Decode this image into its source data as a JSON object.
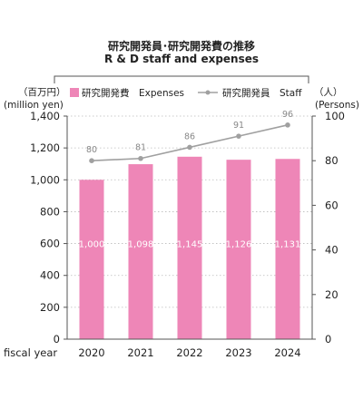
{
  "chart_data": {
    "type": "bar",
    "title": "研究開発員･研究開発費の推移",
    "subtitle": "R & D staff and expenses",
    "xlabel": "fiscal year",
    "categories": [
      "2020",
      "2021",
      "2022",
      "2023",
      "2024"
    ],
    "left_unit_line1": "（百万円）",
    "left_unit_line2": "(million yen)",
    "right_unit_line1": "（人）",
    "right_unit_line2": "(Persons)",
    "ylim_left": [
      0,
      1400
    ],
    "ylim_right": [
      0,
      100
    ],
    "yticks_left": [
      "0",
      "200",
      "400",
      "600",
      "800",
      "1,000",
      "1,200",
      "1,400"
    ],
    "yticks_right": [
      "0",
      "20",
      "40",
      "60",
      "80",
      "100"
    ],
    "series": [
      {
        "name": "研究開発費　Expenses",
        "type": "bar",
        "axis": "left",
        "color": "#ee86b7",
        "values": [
          1000,
          1098,
          1145,
          1126,
          1131
        ],
        "labels": [
          "1,000",
          "1,098",
          "1,145",
          "1,126",
          "1,131"
        ]
      },
      {
        "name": "研究開発員　Staff",
        "type": "line",
        "axis": "right",
        "color": "#a0a0a0",
        "values": [
          80,
          81,
          86,
          91,
          96
        ],
        "labels": [
          "80",
          "81",
          "86",
          "91",
          "96"
        ]
      }
    ]
  }
}
